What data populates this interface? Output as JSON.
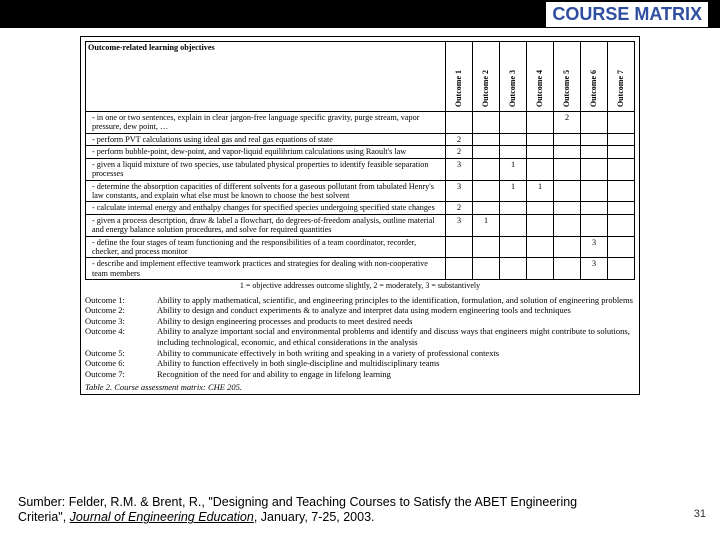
{
  "header": {
    "title": "COURSE MATRIX"
  },
  "table": {
    "obj_header": "Outcome-related learning objectives",
    "columns": [
      "Outcome 1",
      "Outcome 2",
      "Outcome 3",
      "Outcome 4",
      "Outcome 5",
      "Outcome 6",
      "Outcome 7"
    ],
    "rows": [
      {
        "obj": "- in one or two sentences, explain in clear jargon-free language specific gravity, purge stream, vapor pressure, dew point, …",
        "vals": [
          "",
          "",
          "",
          "",
          "2",
          "",
          ""
        ]
      },
      {
        "obj": "- perform PVT calculations using ideal gas and real gas equations of state",
        "vals": [
          "2",
          "",
          "",
          "",
          "",
          "",
          ""
        ]
      },
      {
        "obj": "- perform bubble-point, dew-point, and vapor-liquid equilibrium calculations using Raoult's law",
        "vals": [
          "2",
          "",
          "",
          "",
          "",
          "",
          ""
        ]
      },
      {
        "obj": "- given a liquid mixture of two species, use tabulated physical properties to identify feasible separation processes",
        "vals": [
          "3",
          "",
          "1",
          "",
          "",
          "",
          ""
        ]
      },
      {
        "obj": "- determine the absorption capacities of different solvents for a gaseous pollutant from tabulated Henry's law constants, and explain what else must be known to choose the best solvent",
        "vals": [
          "3",
          "",
          "1",
          "1",
          "",
          "",
          ""
        ]
      },
      {
        "obj": "- calculate internal energy and enthalpy changes for specified species undergoing specified state changes",
        "vals": [
          "2",
          "",
          "",
          "",
          "",
          "",
          ""
        ]
      },
      {
        "obj": "- given a process description, draw & label a flowchart, do degrees-of-freedom analysis, outline material and energy balance solution procedures, and solve for required quantities",
        "vals": [
          "3",
          "1",
          "",
          "",
          "",
          "",
          ""
        ]
      },
      {
        "obj": "- define the four stages of team functioning and the responsibilities of a team coordinator, recorder, checker, and process monitor",
        "vals": [
          "",
          "",
          "",
          "",
          "",
          "3",
          ""
        ]
      },
      {
        "obj": "- describe and implement effective teamwork practices and strategies for dealing with non-cooperative team members",
        "vals": [
          "",
          "",
          "",
          "",
          "",
          "3",
          ""
        ]
      }
    ],
    "legend": "1 = objective addresses outcome slightly, 2 = moderately, 3 = substantively"
  },
  "outcomes": [
    {
      "label": "Outcome 1:",
      "desc": "Ability to apply mathematical, scientific, and engineering principles to the identification, formulation, and solution of engineering problems"
    },
    {
      "label": "Outcome 2:",
      "desc": "Ability to design and conduct experiments & to analyze and interpret data using modern engineering tools and techniques"
    },
    {
      "label": "Outcome 3:",
      "desc": "Ability to design engineering processes and products to meet desired needs"
    },
    {
      "label": "Outcome 4:",
      "desc": "Ability to analyze important social and environmental problems and identify and discuss ways that engineers might contribute to solutions, including technological, economic, and ethical considerations in the analysis"
    },
    {
      "label": "Outcome 5:",
      "desc": "Ability to communicate effectively in both writing and speaking in a variety of professional contexts"
    },
    {
      "label": "Outcome 6:",
      "desc": "Ability to function effectively in both single-discipline and multidisciplinary teams"
    },
    {
      "label": "Outcome 7:",
      "desc": "Recognition of the need for and ability to engage in lifelong learning"
    }
  ],
  "caption": "Table 2. Course assessment matrix: CHE 205.",
  "citation": {
    "prefix": "Sumber: Felder, R.M. & Brent, R., \"Designing and Teaching Courses to Satisfy the ABET Engineering Criteria\", ",
    "journal": "Journal of Engineering Education",
    "suffix": ", January, 7-25, 2003."
  },
  "page": "31"
}
